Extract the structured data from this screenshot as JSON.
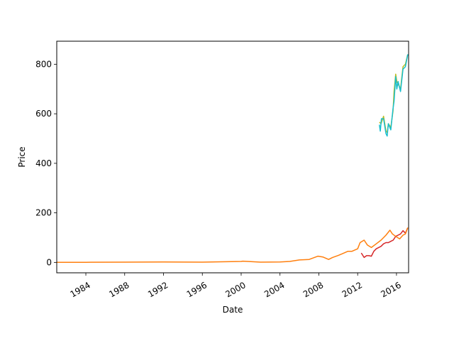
{
  "chart_data": {
    "type": "line",
    "xlabel": "Date",
    "ylabel": "Price",
    "xlim": [
      "1981-01-01",
      "2017-04-01"
    ],
    "ylim": [
      -42,
      893
    ],
    "x_ticks": [
      "1984",
      "1988",
      "1992",
      "1996",
      "2000",
      "2004",
      "2008",
      "2012",
      "2016"
    ],
    "y_ticks": [
      0,
      200,
      400,
      600,
      800
    ],
    "grid": false,
    "series": [
      {
        "color": "#bcbd22",
        "x": [
          "2014-03-27",
          "2014-06-01",
          "2014-09-01",
          "2014-12-01",
          "2015-01-15",
          "2015-03-01",
          "2015-06-01",
          "2015-08-24",
          "2015-10-01",
          "2015-12-01",
          "2016-01-15",
          "2016-03-01",
          "2016-06-01",
          "2016-09-01",
          "2016-12-01",
          "2017-03-01"
        ],
        "values": [
          566,
          560,
          590,
          530,
          525,
          560,
          545,
          610,
          690,
          760,
          730,
          720,
          700,
          790,
          800,
          840
        ]
      },
      {
        "color": "#17becf",
        "x": [
          "2014-03-27",
          "2014-05-01",
          "2014-06-15",
          "2014-09-01",
          "2014-12-01",
          "2015-01-15",
          "2015-03-01",
          "2015-06-01",
          "2015-08-24",
          "2015-10-01",
          "2015-12-01",
          "2016-01-15",
          "2016-03-01",
          "2016-06-01",
          "2016-09-01",
          "2016-12-01",
          "2017-03-01"
        ],
        "values": [
          556,
          530,
          580,
          580,
          520,
          510,
          560,
          535,
          620,
          650,
          750,
          700,
          730,
          690,
          780,
          790,
          840
        ]
      },
      {
        "color": "#d62728",
        "x": [
          "2012-05-18",
          "2012-09-01",
          "2012-12-01",
          "2013-03-01",
          "2013-06-01",
          "2013-09-01",
          "2013-12-01",
          "2014-03-01",
          "2014-06-01",
          "2014-09-01",
          "2014-12-01",
          "2015-03-01",
          "2015-06-01",
          "2015-09-01",
          "2015-12-01",
          "2016-03-01",
          "2016-06-01",
          "2016-09-01",
          "2016-12-01",
          "2017-03-01"
        ],
        "values": [
          38,
          20,
          27,
          27,
          25,
          45,
          55,
          60,
          65,
          75,
          80,
          80,
          85,
          90,
          105,
          110,
          115,
          128,
          118,
          140
        ]
      },
      {
        "color": "#ff7f0e",
        "x": [
          "1981-01-01",
          "1984-01-01",
          "1988-01-01",
          "1992-01-01",
          "1996-01-01",
          "2000-01-01",
          "2000-03-01",
          "2002-01-01",
          "2004-01-01",
          "2005-01-01",
          "2006-01-01",
          "2007-01-01",
          "2007-12-01",
          "2008-06-01",
          "2009-01-01",
          "2009-06-01",
          "2010-01-01",
          "2010-06-01",
          "2011-01-01",
          "2011-06-01",
          "2012-01-01",
          "2012-04-01",
          "2012-09-01",
          "2013-01-01",
          "2013-06-01",
          "2013-12-01",
          "2014-06-01",
          "2014-12-01",
          "2015-05-01",
          "2015-08-01",
          "2015-12-01",
          "2016-05-01",
          "2016-09-01",
          "2016-12-01",
          "2017-03-01"
        ],
        "values": [
          0.5,
          0.5,
          1,
          1.5,
          1,
          4,
          5,
          1,
          1.5,
          4,
          10,
          12,
          25,
          22,
          12,
          20,
          28,
          35,
          45,
          45,
          55,
          80,
          90,
          70,
          60,
          75,
          90,
          110,
          130,
          115,
          105,
          95,
          110,
          115,
          140
        ]
      }
    ]
  }
}
